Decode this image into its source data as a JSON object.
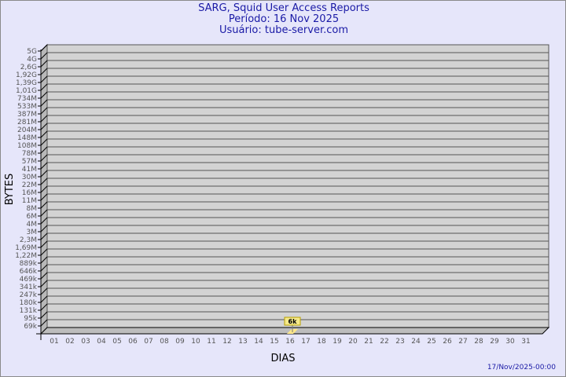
{
  "header": {
    "title": "SARG, Squid User Access Reports",
    "period": "Período: 16 Nov 2025",
    "user": "Usuário: tube-server.com"
  },
  "footer": {
    "timestamp": "17/Nov/2025-00:00"
  },
  "colors": {
    "background": "#e6e6fa",
    "title": "#1a1aa6",
    "wall": "#d3d3d3",
    "side": "#b8b8b8",
    "bar": "#ffe88a",
    "label_box": "#f5e98a"
  },
  "chart_data": {
    "type": "bar",
    "xlabel": "DIAS",
    "ylabel": "BYTES",
    "grid": true,
    "y_scale": "log",
    "y_ticks": [
      "5G",
      "4G",
      "2,6G",
      "1,92G",
      "1,39G",
      "1,01G",
      "734M",
      "533M",
      "387M",
      "281M",
      "204M",
      "148M",
      "108M",
      "78M",
      "57M",
      "41M",
      "30M",
      "22M",
      "16M",
      "11M",
      "8M",
      "6M",
      "4M",
      "3M",
      "2,3M",
      "1,69M",
      "1,22M",
      "889k",
      "646k",
      "469k",
      "341k",
      "247k",
      "180k",
      "131k",
      "95k",
      "69k"
    ],
    "categories": [
      "01",
      "02",
      "03",
      "04",
      "05",
      "06",
      "07",
      "08",
      "09",
      "10",
      "11",
      "12",
      "13",
      "14",
      "15",
      "16",
      "17",
      "18",
      "19",
      "20",
      "21",
      "22",
      "23",
      "24",
      "25",
      "26",
      "27",
      "28",
      "29",
      "30",
      "31"
    ],
    "values": [
      null,
      null,
      null,
      null,
      null,
      null,
      null,
      null,
      null,
      null,
      null,
      null,
      null,
      null,
      null,
      6000,
      null,
      null,
      null,
      null,
      null,
      null,
      null,
      null,
      null,
      null,
      null,
      null,
      null,
      null,
      null
    ],
    "data_labels": {
      "16": "6k"
    }
  }
}
